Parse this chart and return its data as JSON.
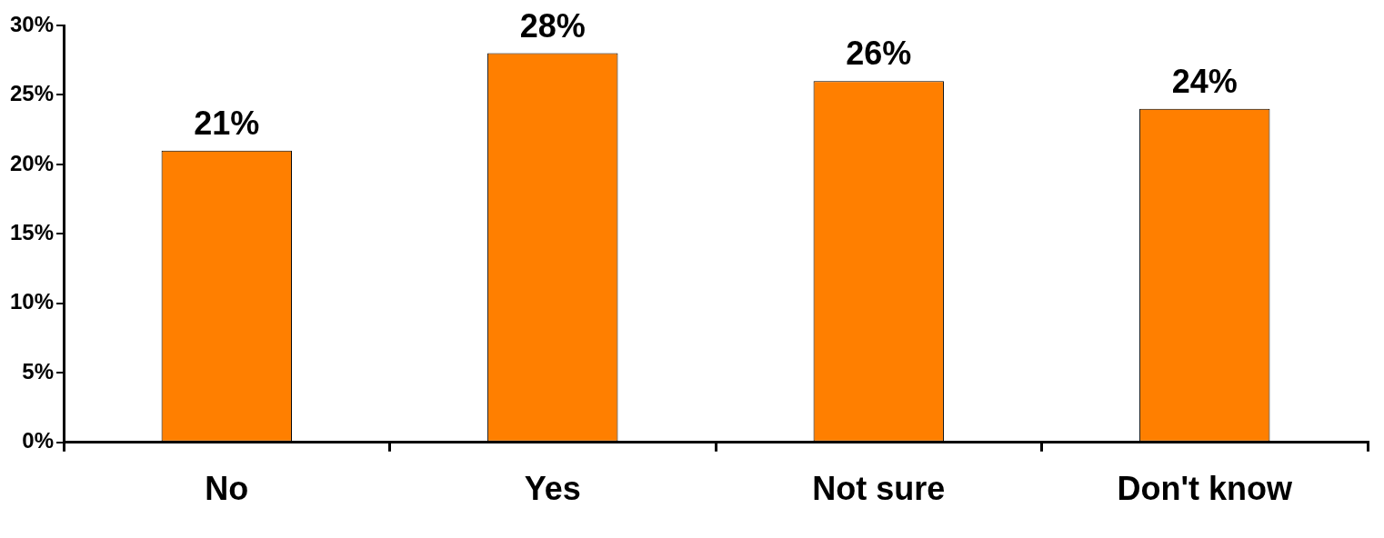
{
  "chart_data": {
    "type": "bar",
    "categories": [
      "No",
      "Yes",
      "Not sure",
      "Don't know"
    ],
    "values": [
      21,
      28,
      26,
      24
    ],
    "color": "#ff7f00",
    "value_labels": [
      "21%",
      "28%",
      "26%",
      "24%"
    ],
    "ylim": [
      0,
      30
    ],
    "yticks": [
      {
        "value": 0,
        "label": "0%"
      },
      {
        "value": 5,
        "label": "5%"
      },
      {
        "value": 10,
        "label": "10%"
      },
      {
        "value": 15,
        "label": "15%"
      },
      {
        "value": 20,
        "label": "20%"
      },
      {
        "value": 25,
        "label": "25%"
      },
      {
        "value": 30,
        "label": "30%"
      }
    ],
    "grid": false,
    "legend": false
  }
}
